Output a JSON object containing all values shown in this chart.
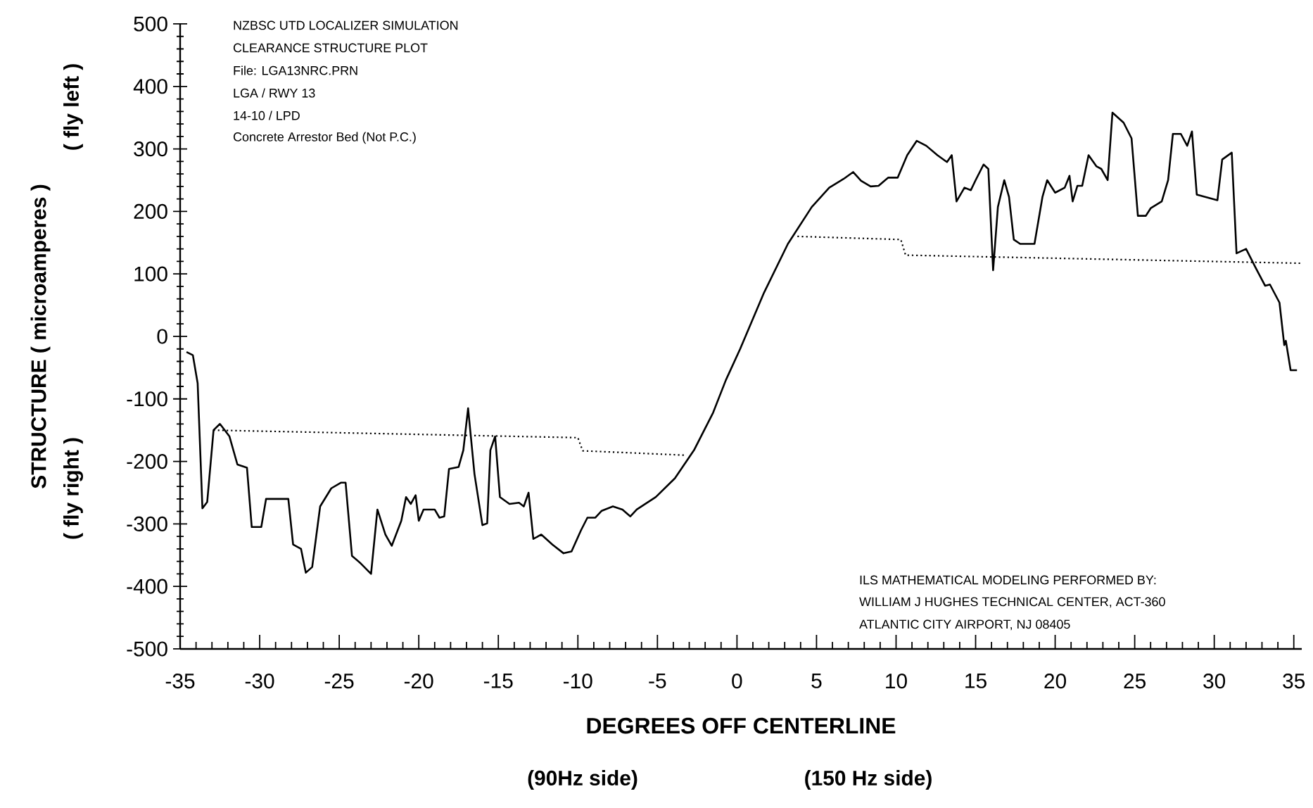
{
  "chart_data": {
    "type": "line",
    "xlabel": "DEGREES OFF CENTERLINE",
    "ylabel": "STRUCTURE ( microamperes )",
    "xlim": [
      -35,
      35.5
    ],
    "ylim": [
      -500,
      500
    ],
    "xticks": [
      -35,
      -30,
      -25,
      -20,
      -15,
      -10,
      -5,
      0,
      5,
      10,
      15,
      20,
      25,
      30,
      35
    ],
    "yticks": [
      -500,
      -400,
      -300,
      -200,
      -100,
      0,
      100,
      200,
      300,
      400,
      500
    ],
    "grid": false,
    "series": [
      {
        "color": "#000000",
        "line_style": "solid",
        "x": [
          -34.6,
          -34.2,
          -33.9,
          -33.6,
          -33.3,
          -32.9,
          -32.5,
          -31.9,
          -31.4,
          -30.8,
          -30.5,
          -29.9,
          -29.6,
          -28.2,
          -27.9,
          -27.4,
          -27.1,
          -26.7,
          -26.2,
          -25.5,
          -24.9,
          -24.6,
          -24.2,
          -23.7,
          -23.0,
          -22.6,
          -22.1,
          -21.7,
          -21.1,
          -20.8,
          -20.5,
          -20.2,
          -20.0,
          -19.7,
          -19.0,
          -18.7,
          -18.4,
          -18.1,
          -17.5,
          -17.2,
          -16.9,
          -16.5,
          -16.0,
          -15.7,
          -15.5,
          -15.2,
          -14.9,
          -14.3,
          -13.7,
          -13.4,
          -13.1,
          -12.8,
          -12.3,
          -11.6,
          -10.9,
          -10.4,
          -9.8,
          -9.4,
          -8.9,
          -8.5,
          -7.8,
          -7.2,
          -6.7,
          -6.3,
          -5.1,
          -3.9,
          -2.7,
          -1.5,
          -0.7,
          0.2,
          1.7,
          3.2,
          4.7,
          5.8,
          6.7,
          7.3,
          7.8,
          8.4,
          8.9,
          9.5,
          10.1,
          10.7,
          11.3,
          11.9,
          12.6,
          13.2,
          13.5,
          13.8,
          14.3,
          14.7,
          15.0,
          15.5,
          15.8,
          16.1,
          16.4,
          16.8,
          17.1,
          17.4,
          17.8,
          18.3,
          18.7,
          19.2,
          19.5,
          20.0,
          20.6,
          20.9,
          21.1,
          21.4,
          21.7,
          22.1,
          22.6,
          22.9,
          23.3,
          23.6,
          24.3,
          24.8,
          25.2,
          25.7,
          26.0,
          26.7,
          27.1,
          27.4,
          27.9,
          28.3,
          28.6,
          28.9,
          30.2,
          30.5,
          31.1,
          31.4,
          32.0,
          32.6,
          33.2,
          33.5,
          34.1,
          34.4,
          34.5,
          34.8,
          35.2
        ],
        "values": [
          -25,
          -30,
          -75,
          -275,
          -265,
          -150,
          -140,
          -160,
          -205,
          -210,
          -305,
          -305,
          -260,
          -260,
          -333,
          -340,
          -378,
          -369,
          -272,
          -243,
          -234,
          -234,
          -351,
          -362,
          -380,
          -277,
          -317,
          -335,
          -295,
          -257,
          -268,
          -254,
          -295,
          -277,
          -277,
          -290,
          -288,
          -212,
          -209,
          -182,
          -115,
          -220,
          -302,
          -299,
          -182,
          -160,
          -257,
          -268,
          -266,
          -272,
          -250,
          -324,
          -317,
          -333,
          -347,
          -344,
          -310,
          -290,
          -290,
          -279,
          -272,
          -277,
          -288,
          -277,
          -257,
          -227,
          -182,
          -122,
          -70,
          -20,
          70,
          148,
          207,
          238,
          252,
          263,
          249,
          240,
          241,
          254,
          254,
          290,
          313,
          305,
          290,
          279,
          290,
          216,
          238,
          234,
          250,
          275,
          268,
          106,
          207,
          250,
          223,
          155,
          148,
          148,
          148,
          223,
          250,
          230,
          238,
          257,
          216,
          241,
          241,
          290,
          272,
          268,
          250,
          358,
          342,
          317,
          193,
          193,
          205,
          216,
          250,
          324,
          324,
          305,
          328,
          227,
          218,
          283,
          294,
          133,
          140,
          110,
          81,
          83,
          54,
          -14,
          -7,
          -54,
          -54
        ]
      },
      {
        "color": "#000000",
        "line_style": "dotted",
        "x": [
          -32.9,
          -10.0,
          -9.7,
          -3.3,
          null,
          3.8,
          10.3,
          10.6,
          35.5
        ],
        "values": [
          -150,
          -162,
          -183,
          -190,
          null,
          160,
          155,
          130,
          117
        ]
      }
    ],
    "annotations": [
      "NZBSC UTD LOCALIZER SIMULATION",
      "CLEARANCE STRUCTURE  PLOT",
      "File: LGA13NRC.PRN",
      "LGA / RWY 13",
      "14-10 / LPD",
      "Concrete Arrestor Bed (Not P.C.)",
      "ILS MATHEMATICAL MODELING PERFORMED BY:",
      "WILLIAM J HUGHES TECHNICAL CENTER, ACT-360",
      "ATLANTIC CITY AIRPORT, NJ 08405",
      "( fly right )",
      "( fly left )",
      "(90Hz side)",
      "(150 Hz side)"
    ]
  }
}
